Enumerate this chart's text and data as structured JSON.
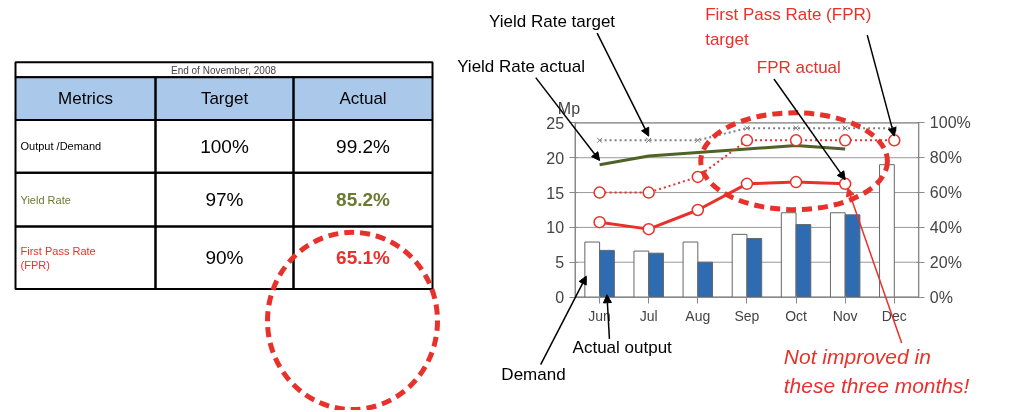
{
  "chart_data": [
    {
      "type": "other",
      "title": "End of November, 2008",
      "annotations": [
        "Metrics",
        "Target",
        "Actual",
        "Output /Demand",
        "100%",
        "99.2%",
        "Yield Rate",
        "97%",
        "85.2%",
        "First Pass Rate (FPR)",
        "90%",
        "65.1%"
      ]
    },
    {
      "type": "bar",
      "categories": [
        "Jun",
        "Jul",
        "Aug",
        "Sep",
        "Oct",
        "Nov",
        "Dec"
      ],
      "ylabel": "Mp",
      "ylim": [
        0,
        25
      ],
      "yticks": [
        0,
        5,
        10,
        15,
        20,
        25
      ],
      "y2lim": [
        0,
        100
      ],
      "y2ticks": [
        {
          "value": 0,
          "label": "0%"
        },
        {
          "value": 20,
          "label": "20%"
        },
        {
          "value": 40,
          "label": "40%"
        },
        {
          "value": 60,
          "label": "60%"
        },
        {
          "value": 80,
          "label": "80%"
        },
        {
          "value": 100,
          "label": "100%"
        }
      ],
      "grid": "y",
      "legend": false,
      "series": [
        {
          "name": "Demand",
          "type": "bar",
          "color": "#ffffff",
          "values": [
            7.9,
            6.6,
            7.9,
            9.0,
            12.1,
            12.1,
            19.0
          ]
        },
        {
          "name": "Actual output",
          "type": "bar",
          "color": "#2e6bb0",
          "values": [
            6.7,
            6.3,
            5.0,
            8.4,
            10.4,
            11.8,
            null
          ]
        },
        {
          "name": "Yield Rate actual",
          "type": "line",
          "axis": "y2",
          "color": "#4f6228",
          "line_style": "solid",
          "marker": "none",
          "values": [
            76,
            81,
            83,
            85,
            87,
            85,
            null
          ]
        },
        {
          "name": "Yield Rate target",
          "type": "line",
          "axis": "y2",
          "color": "#808080",
          "line_style": "dotted",
          "marker": "cross",
          "values": [
            90,
            90,
            90,
            97,
            97,
            97,
            97
          ]
        },
        {
          "name": "FPR actual",
          "type": "line",
          "axis": "y2",
          "color": "#e8312a",
          "line_style": "solid",
          "marker": "circle",
          "values": [
            43,
            39,
            50,
            65,
            66,
            65,
            null
          ]
        },
        {
          "name": "First Pass Rate (FPR) target",
          "type": "line",
          "axis": "y2",
          "color": "#e8312a",
          "line_style": "dotted",
          "marker": "circle",
          "values": [
            60,
            60,
            69,
            90,
            90,
            90,
            90
          ]
        }
      ],
      "annotations": [
        "Not improved in these three months!"
      ]
    }
  ]
}
